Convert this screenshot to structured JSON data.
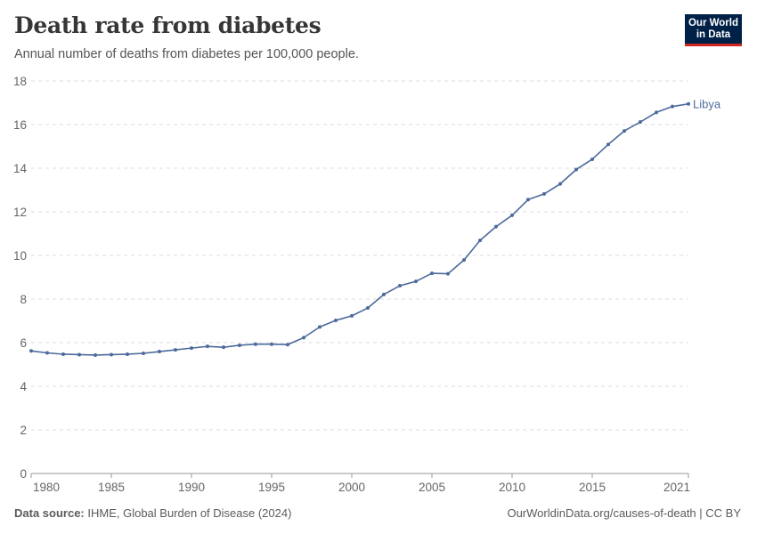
{
  "header": {
    "title": "Death rate from diabetes",
    "subtitle": "Annual number of deaths from diabetes per 100,000 people."
  },
  "logo": {
    "line1": "Our World",
    "line2": "in Data"
  },
  "footer": {
    "source_label": "Data source:",
    "source_text": "IHME, Global Burden of Disease (2024)",
    "link": "OurWorldinData.org/causes-of-death | CC BY"
  },
  "colors": {
    "series": "#4c6a9c",
    "grid": "#dddddd",
    "logo_bg": "#002147",
    "logo_accent": "#ce261e"
  },
  "chart_data": {
    "type": "line",
    "title": "Death rate from diabetes",
    "ylim": [
      0,
      18
    ],
    "yticks": [
      0,
      2,
      4,
      6,
      8,
      10,
      12,
      14,
      16,
      18
    ],
    "xlim": [
      1980,
      2021
    ],
    "xticks": [
      1980,
      1985,
      1990,
      1995,
      2000,
      2005,
      2010,
      2015,
      2021
    ],
    "grid": "horizontal dashed",
    "series": [
      {
        "name": "Libya",
        "x": [
          1980,
          1981,
          1982,
          1983,
          1984,
          1985,
          1986,
          1987,
          1988,
          1989,
          1990,
          1991,
          1992,
          1993,
          1994,
          1995,
          1996,
          1997,
          1998,
          1999,
          2000,
          2001,
          2002,
          2003,
          2004,
          2005,
          2006,
          2007,
          2008,
          2009,
          2010,
          2011,
          2012,
          2013,
          2014,
          2015,
          2016,
          2017,
          2018,
          2019,
          2020,
          2021
        ],
        "values": [
          5.62,
          5.53,
          5.47,
          5.45,
          5.43,
          5.45,
          5.47,
          5.51,
          5.59,
          5.67,
          5.75,
          5.83,
          5.79,
          5.88,
          5.93,
          5.93,
          5.91,
          6.23,
          6.72,
          7.02,
          7.23,
          7.59,
          8.21,
          8.61,
          8.81,
          9.18,
          9.16,
          9.79,
          10.69,
          11.32,
          11.84,
          12.56,
          12.82,
          13.28,
          13.94,
          14.41,
          15.09,
          15.71,
          16.12,
          16.56,
          16.83,
          16.95
        ]
      }
    ]
  }
}
